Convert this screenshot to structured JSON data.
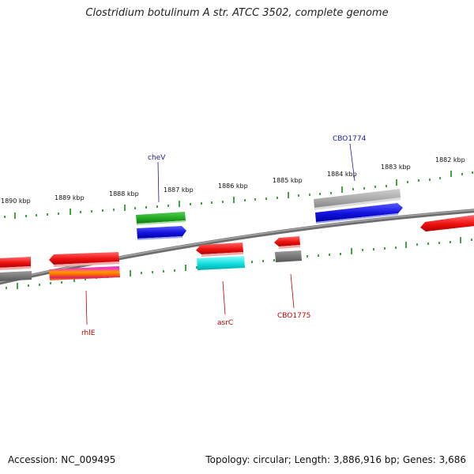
{
  "header": {
    "title": "Clostridium botulinum A str. ATCC 3502, complete genome"
  },
  "footer": {
    "accession": "Accession: NC_009495",
    "topology": "Topology: circular; Length: 3,886,916 bp; Genes: 3,686"
  },
  "scale_labels": [
    "1890 kbp",
    "1889 kbp",
    "1888 kbp",
    "1887 kbp",
    "1886 kbp",
    "1885 kbp",
    "1884 kbp",
    "1883 kbp",
    "1882 kbp"
  ],
  "gene_labels": {
    "chev": "cheV",
    "cbo1774": "CBO1774",
    "rhle": "rhlE",
    "asrc": "asrC",
    "cbo1775": "CBO1775"
  },
  "colors": {
    "backbone": "#7a7a7a",
    "tick": "#1a8a1a",
    "forward_label": "#1a1aa0",
    "reverse_label": "#c00000",
    "cds_red": "#ee1111",
    "cds_blue": "#1111dd",
    "cds_green": "#22aa22",
    "cds_grey": "#777777",
    "cds_lightgrey": "#aaaaaa",
    "cds_cyan": "#11dddd"
  }
}
